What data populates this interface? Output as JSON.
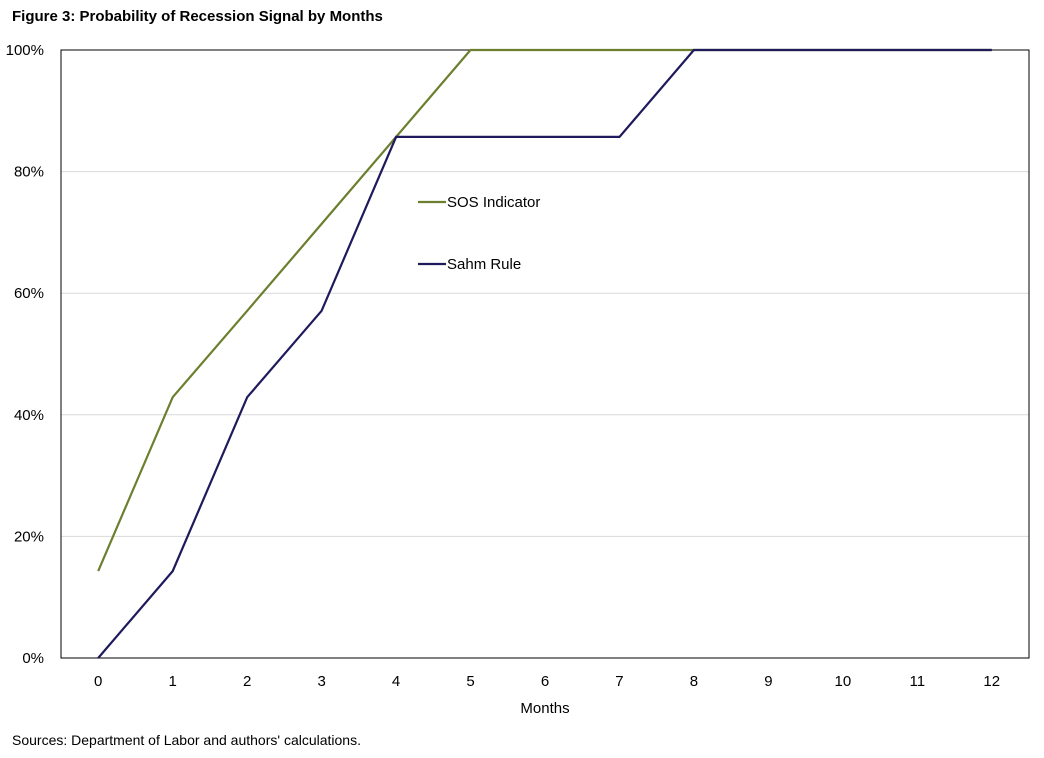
{
  "figure": {
    "title": "Figure 3: Probability of Recession Signal by Months",
    "source": "Sources: Department of Labor and authors' calculations."
  },
  "chart_data": {
    "type": "line",
    "xlabel": "Months",
    "ylabel": "",
    "x": [
      0,
      1,
      2,
      3,
      4,
      5,
      6,
      7,
      8,
      9,
      10,
      11,
      12
    ],
    "xlim": [
      0,
      12
    ],
    "ylim": [
      0,
      100
    ],
    "y_ticks": [
      0,
      20,
      40,
      60,
      80,
      100
    ],
    "y_tick_labels": [
      "0%",
      "20%",
      "40%",
      "60%",
      "80%",
      "100%"
    ],
    "grid": "horizontal",
    "legend_position": "inside-center-left",
    "series": [
      {
        "name": "SOS Indicator",
        "color": "#6b7f2e",
        "values": [
          14.3,
          42.9,
          57.1,
          71.4,
          85.7,
          100,
          100,
          100,
          100,
          100,
          100,
          100,
          100
        ]
      },
      {
        "name": "Sahm Rule",
        "color": "#1f1a5c",
        "values": [
          0,
          14.3,
          42.9,
          57.1,
          85.7,
          85.7,
          85.7,
          85.7,
          100,
          100,
          100,
          100,
          100
        ]
      }
    ]
  }
}
